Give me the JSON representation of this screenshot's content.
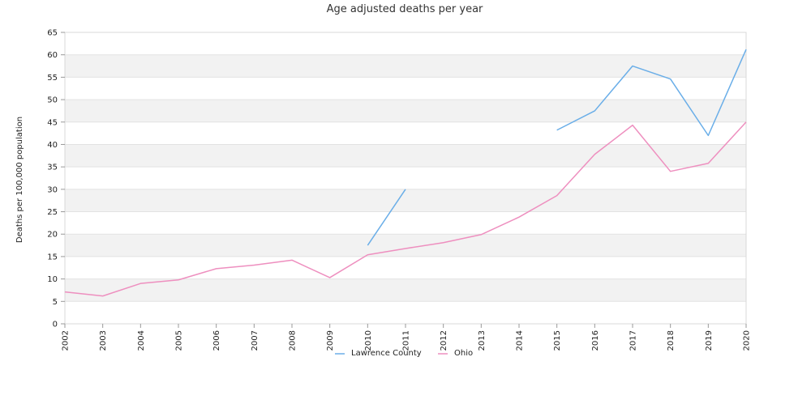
{
  "chart_data": {
    "type": "line",
    "title": "Age adjusted deaths per year",
    "xlabel": "",
    "ylabel": "Deaths per 100,000 population",
    "ylim": [
      0,
      65
    ],
    "yticks": [
      0,
      5,
      10,
      15,
      20,
      25,
      30,
      35,
      40,
      45,
      50,
      55,
      60,
      65
    ],
    "grid": "alternating horizontal bands",
    "legend_position": "bottom",
    "categories": [
      "2002",
      "2003",
      "2004",
      "2005",
      "2006",
      "2007",
      "2008",
      "2009",
      "2010",
      "2011",
      "2012",
      "2013",
      "2014",
      "2015",
      "2016",
      "2017",
      "2018",
      "2019",
      "2020"
    ],
    "series": [
      {
        "name": "Lawrence County",
        "color": "#6aaee8",
        "values": [
          null,
          null,
          null,
          null,
          null,
          null,
          null,
          null,
          17.5,
          30.0,
          null,
          null,
          null,
          43.2,
          47.5,
          57.5,
          54.6,
          42.0,
          61.2
        ]
      },
      {
        "name": "Ohio",
        "color": "#ee8fbf",
        "values": [
          7.1,
          6.2,
          9.0,
          9.8,
          12.3,
          13.1,
          14.2,
          10.3,
          15.4,
          16.8,
          18.1,
          19.9,
          23.8,
          28.6,
          37.8,
          44.3,
          34.0,
          35.8,
          45.0
        ]
      }
    ]
  }
}
